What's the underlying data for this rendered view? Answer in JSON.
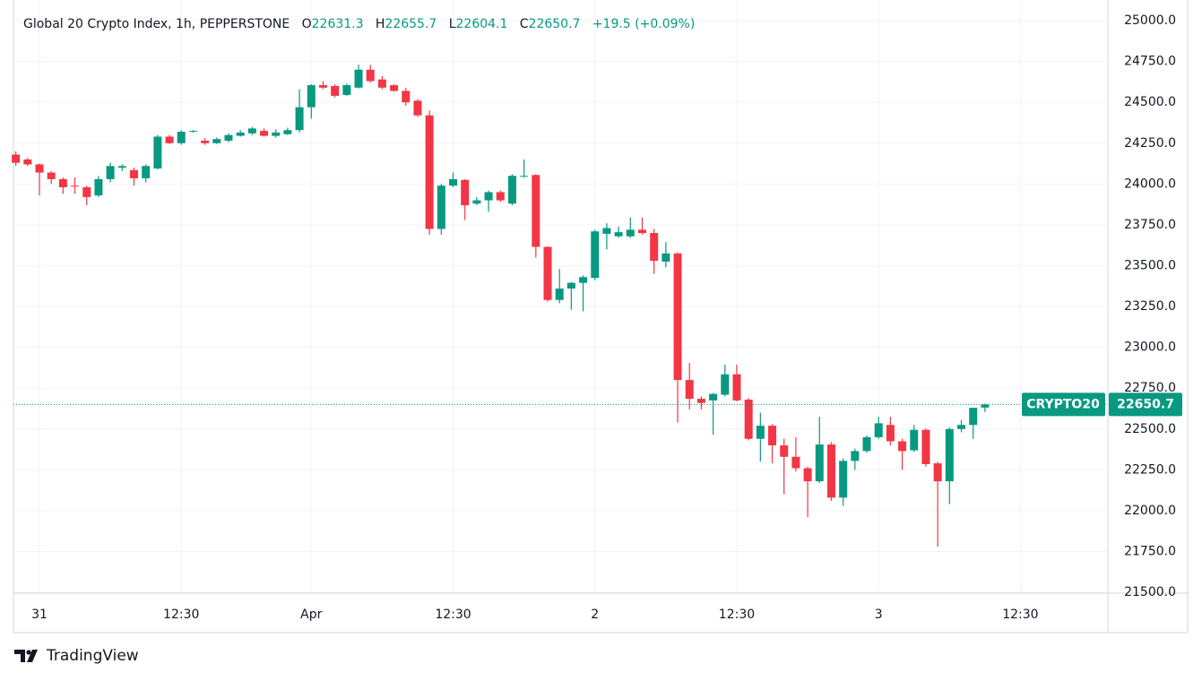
{
  "chart_data": {
    "type": "candlestick",
    "title": "Global 20 Crypto Index, 1h, PEPPERSTONE",
    "ohlc_labels": [
      "O",
      "H",
      "L",
      "C"
    ],
    "change": "+19.5",
    "change_pct": "(+0.09%)",
    "symbol": "CRYPTO20",
    "up_color": "#089981",
    "down_color": "#f23645",
    "grid": true,
    "x": [
      0,
      1,
      2,
      3,
      4,
      5,
      6,
      7,
      8,
      9,
      10,
      11,
      12,
      13,
      14,
      15,
      16,
      17,
      18,
      19,
      20,
      21,
      22,
      23,
      24,
      25,
      26,
      27,
      28,
      29,
      30,
      31,
      32,
      33,
      34,
      35,
      36,
      37,
      38,
      39,
      40,
      41,
      42,
      43,
      44,
      45,
      46,
      47,
      48,
      49,
      50,
      51,
      52,
      53,
      54,
      55,
      56,
      57,
      58,
      59,
      60,
      61,
      62,
      63,
      64,
      65,
      66,
      67,
      68,
      69,
      70,
      71,
      72,
      73,
      74,
      75,
      76,
      77,
      78,
      79,
      80,
      81,
      82
    ],
    "open": [
      24180,
      24150,
      24120,
      24070,
      24030,
      23990,
      23980,
      23930,
      24030,
      24100,
      24085,
      24035,
      24095,
      24290,
      24250,
      24320,
      24265,
      24250,
      24265,
      24295,
      24310,
      24325,
      24295,
      24305,
      24330,
      24470,
      24605,
      24600,
      24545,
      24590,
      24700,
      24640,
      24605,
      24570,
      24510,
      24420,
      23725,
      23990,
      24025,
      23880,
      23900,
      23950,
      23880,
      24045,
      24055,
      23615,
      23290,
      23360,
      23395,
      23425,
      23695,
      23680,
      23680,
      23720,
      23700,
      23525,
      23575,
      22800,
      22685,
      22675,
      22710,
      22835,
      22680,
      22440,
      22520,
      22400,
      22330,
      22260,
      22180,
      22405,
      22080,
      22305,
      22365,
      22450,
      22525,
      22425,
      22370,
      22495,
      22290,
      22180,
      22500,
      22525,
      22631.3
    ],
    "high": [
      24200,
      24160,
      24125,
      24080,
      24040,
      24040,
      23990,
      24050,
      24130,
      24120,
      24100,
      24120,
      24300,
      24300,
      24330,
      24330,
      24280,
      24285,
      24310,
      24330,
      24350,
      24340,
      24335,
      24345,
      24580,
      24610,
      24630,
      24610,
      24615,
      24730,
      24730,
      24660,
      24610,
      24590,
      24520,
      24450,
      24000,
      24070,
      24030,
      23920,
      23960,
      23960,
      24060,
      24150,
      24060,
      23620,
      23480,
      23400,
      23440,
      23720,
      23760,
      23740,
      23795,
      23795,
      23725,
      23645,
      23580,
      22905,
      22700,
      22720,
      22895,
      22895,
      22690,
      22600,
      22530,
      22440,
      22450,
      22270,
      22575,
      22420,
      22320,
      22380,
      22460,
      22575,
      22575,
      22440,
      22525,
      22505,
      22300,
      22510,
      22555,
      22630,
      22655.7
    ],
    "low": [
      24110,
      24110,
      23930,
      24000,
      23940,
      23940,
      23870,
      23920,
      24010,
      24080,
      23990,
      24010,
      24090,
      24245,
      24240,
      24315,
      24240,
      24245,
      24255,
      24290,
      24300,
      24290,
      24285,
      24300,
      24315,
      24400,
      24580,
      24530,
      24540,
      24585,
      24620,
      24580,
      24565,
      24480,
      24410,
      23690,
      23690,
      23980,
      23780,
      23870,
      23830,
      23890,
      23870,
      24040,
      23550,
      23280,
      23270,
      23230,
      23220,
      23410,
      23600,
      23670,
      23670,
      23690,
      23450,
      23490,
      22540,
      22620,
      22620,
      22465,
      22700,
      22670,
      22430,
      22300,
      22290,
      22100,
      22240,
      21960,
      22170,
      22060,
      22030,
      22250,
      22355,
      22440,
      22400,
      22250,
      22360,
      22270,
      21780,
      22040,
      22480,
      22440,
      22604.1
    ],
    "close": [
      24130,
      24120,
      24070,
      24030,
      23980,
      23985,
      23920,
      24030,
      24110,
      24110,
      24035,
      24110,
      24290,
      24250,
      24320,
      24325,
      24250,
      24275,
      24300,
      24315,
      24340,
      24295,
      24315,
      24330,
      24470,
      24605,
      24590,
      24540,
      24605,
      24700,
      24630,
      24590,
      24570,
      24500,
      24420,
      23725,
      23990,
      24030,
      23870,
      23900,
      23950,
      23900,
      24050,
      24050,
      23615,
      23290,
      23360,
      23395,
      23430,
      23710,
      23730,
      23705,
      23720,
      23700,
      23530,
      23575,
      22800,
      22685,
      22660,
      22715,
      22835,
      22675,
      22440,
      22520,
      22400,
      22330,
      22260,
      22180,
      22405,
      22080,
      22305,
      22365,
      22450,
      22535,
      22425,
      22365,
      22495,
      22285,
      22180,
      22500,
      22525,
      22630,
      22650.7
    ],
    "xlim": [
      -0.2,
      92.4
    ],
    "xticks": [
      {
        "value": 2,
        "label": "31"
      },
      {
        "value": 14,
        "label": "12:30"
      },
      {
        "value": 25,
        "label": "Apr"
      },
      {
        "value": 37,
        "label": "12:30"
      },
      {
        "value": 49,
        "label": "2"
      },
      {
        "value": 61,
        "label": "12:30"
      },
      {
        "value": 73,
        "label": "3"
      },
      {
        "value": 85,
        "label": "12:30"
      }
    ],
    "ylim": [
      21495,
      25099
    ],
    "yticks": [
      {
        "value": 21500,
        "label": "21500.0"
      },
      {
        "value": 21750,
        "label": "21750.0"
      },
      {
        "value": 22000,
        "label": "22000.0"
      },
      {
        "value": 22250,
        "label": "22250.0"
      },
      {
        "value": 22500,
        "label": "22500.0"
      },
      {
        "value": 22750,
        "label": "22750.0"
      },
      {
        "value": 23000,
        "label": "23000.0"
      },
      {
        "value": 23250,
        "label": "23250.0"
      },
      {
        "value": 23500,
        "label": "23500.0"
      },
      {
        "value": 23750,
        "label": "23750.0"
      },
      {
        "value": 24000,
        "label": "24000.0"
      },
      {
        "value": 24250,
        "label": "24250.0"
      },
      {
        "value": 24500,
        "label": "24500.0"
      },
      {
        "value": 24750,
        "label": "24750.0"
      },
      {
        "value": 25000,
        "label": "25000.0"
      }
    ]
  },
  "branding": "TradingView"
}
